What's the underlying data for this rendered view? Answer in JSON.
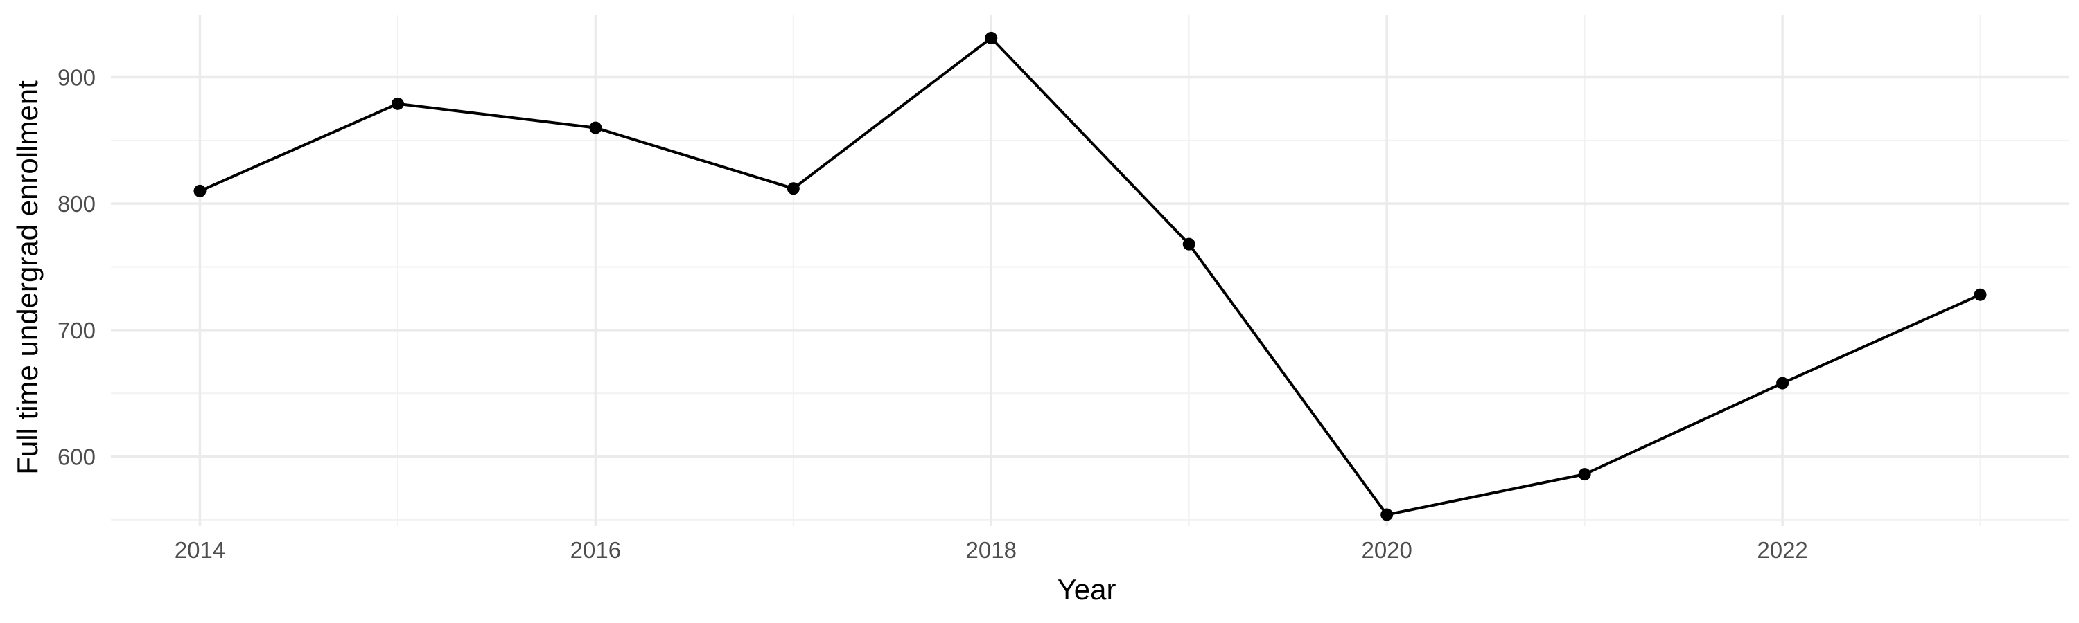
{
  "chart_data": {
    "type": "line",
    "title": "",
    "xlabel": "Year",
    "ylabel": "Full time undergrad enrollment",
    "x": [
      2014,
      2015,
      2016,
      2017,
      2018,
      2019,
      2020,
      2021,
      2022,
      2023
    ],
    "series": [
      {
        "values": [
          810,
          879,
          860,
          812,
          931,
          768,
          554,
          586,
          658,
          728
        ]
      }
    ],
    "xlim": [
      2013.55,
      2023.45
    ],
    "ylim": [
      545,
      949
    ],
    "x_ticks": [
      2014,
      2016,
      2018,
      2020,
      2022
    ],
    "x_tick_labels": [
      "2014",
      "2016",
      "2018",
      "2020",
      "2022"
    ],
    "y_ticks": [
      600,
      700,
      800,
      900
    ],
    "y_tick_labels": [
      "600",
      "700",
      "800",
      "900"
    ],
    "x_minor_ticks": [
      2015,
      2017,
      2019,
      2021,
      2023
    ],
    "y_minor_ticks": [
      550,
      650,
      750,
      850
    ],
    "grid": true,
    "legend": "none",
    "colors": {
      "background": "#ffffff",
      "grid_major": "#ebebeb",
      "grid_minor": "#f2f2f2",
      "line": "#000000",
      "point": "#000000",
      "tick_text": "#4d4d4d",
      "axis_title": "#000000"
    }
  }
}
